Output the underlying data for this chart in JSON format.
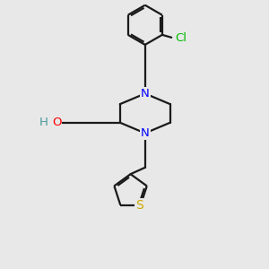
{
  "background_color": "#e8e8e8",
  "bond_color": "#1a1a1a",
  "N_color": "#0000ff",
  "O_color": "#ff0000",
  "Cl_color": "#00bb00",
  "S_color": "#ccaa00",
  "H_color": "#4a9a9a",
  "line_width": 1.6,
  "font_size": 9.5,
  "fig_size": [
    3.0,
    3.0
  ],
  "dpi": 100,
  "xlim": [
    0,
    10
  ],
  "ylim": [
    0,
    10
  ]
}
